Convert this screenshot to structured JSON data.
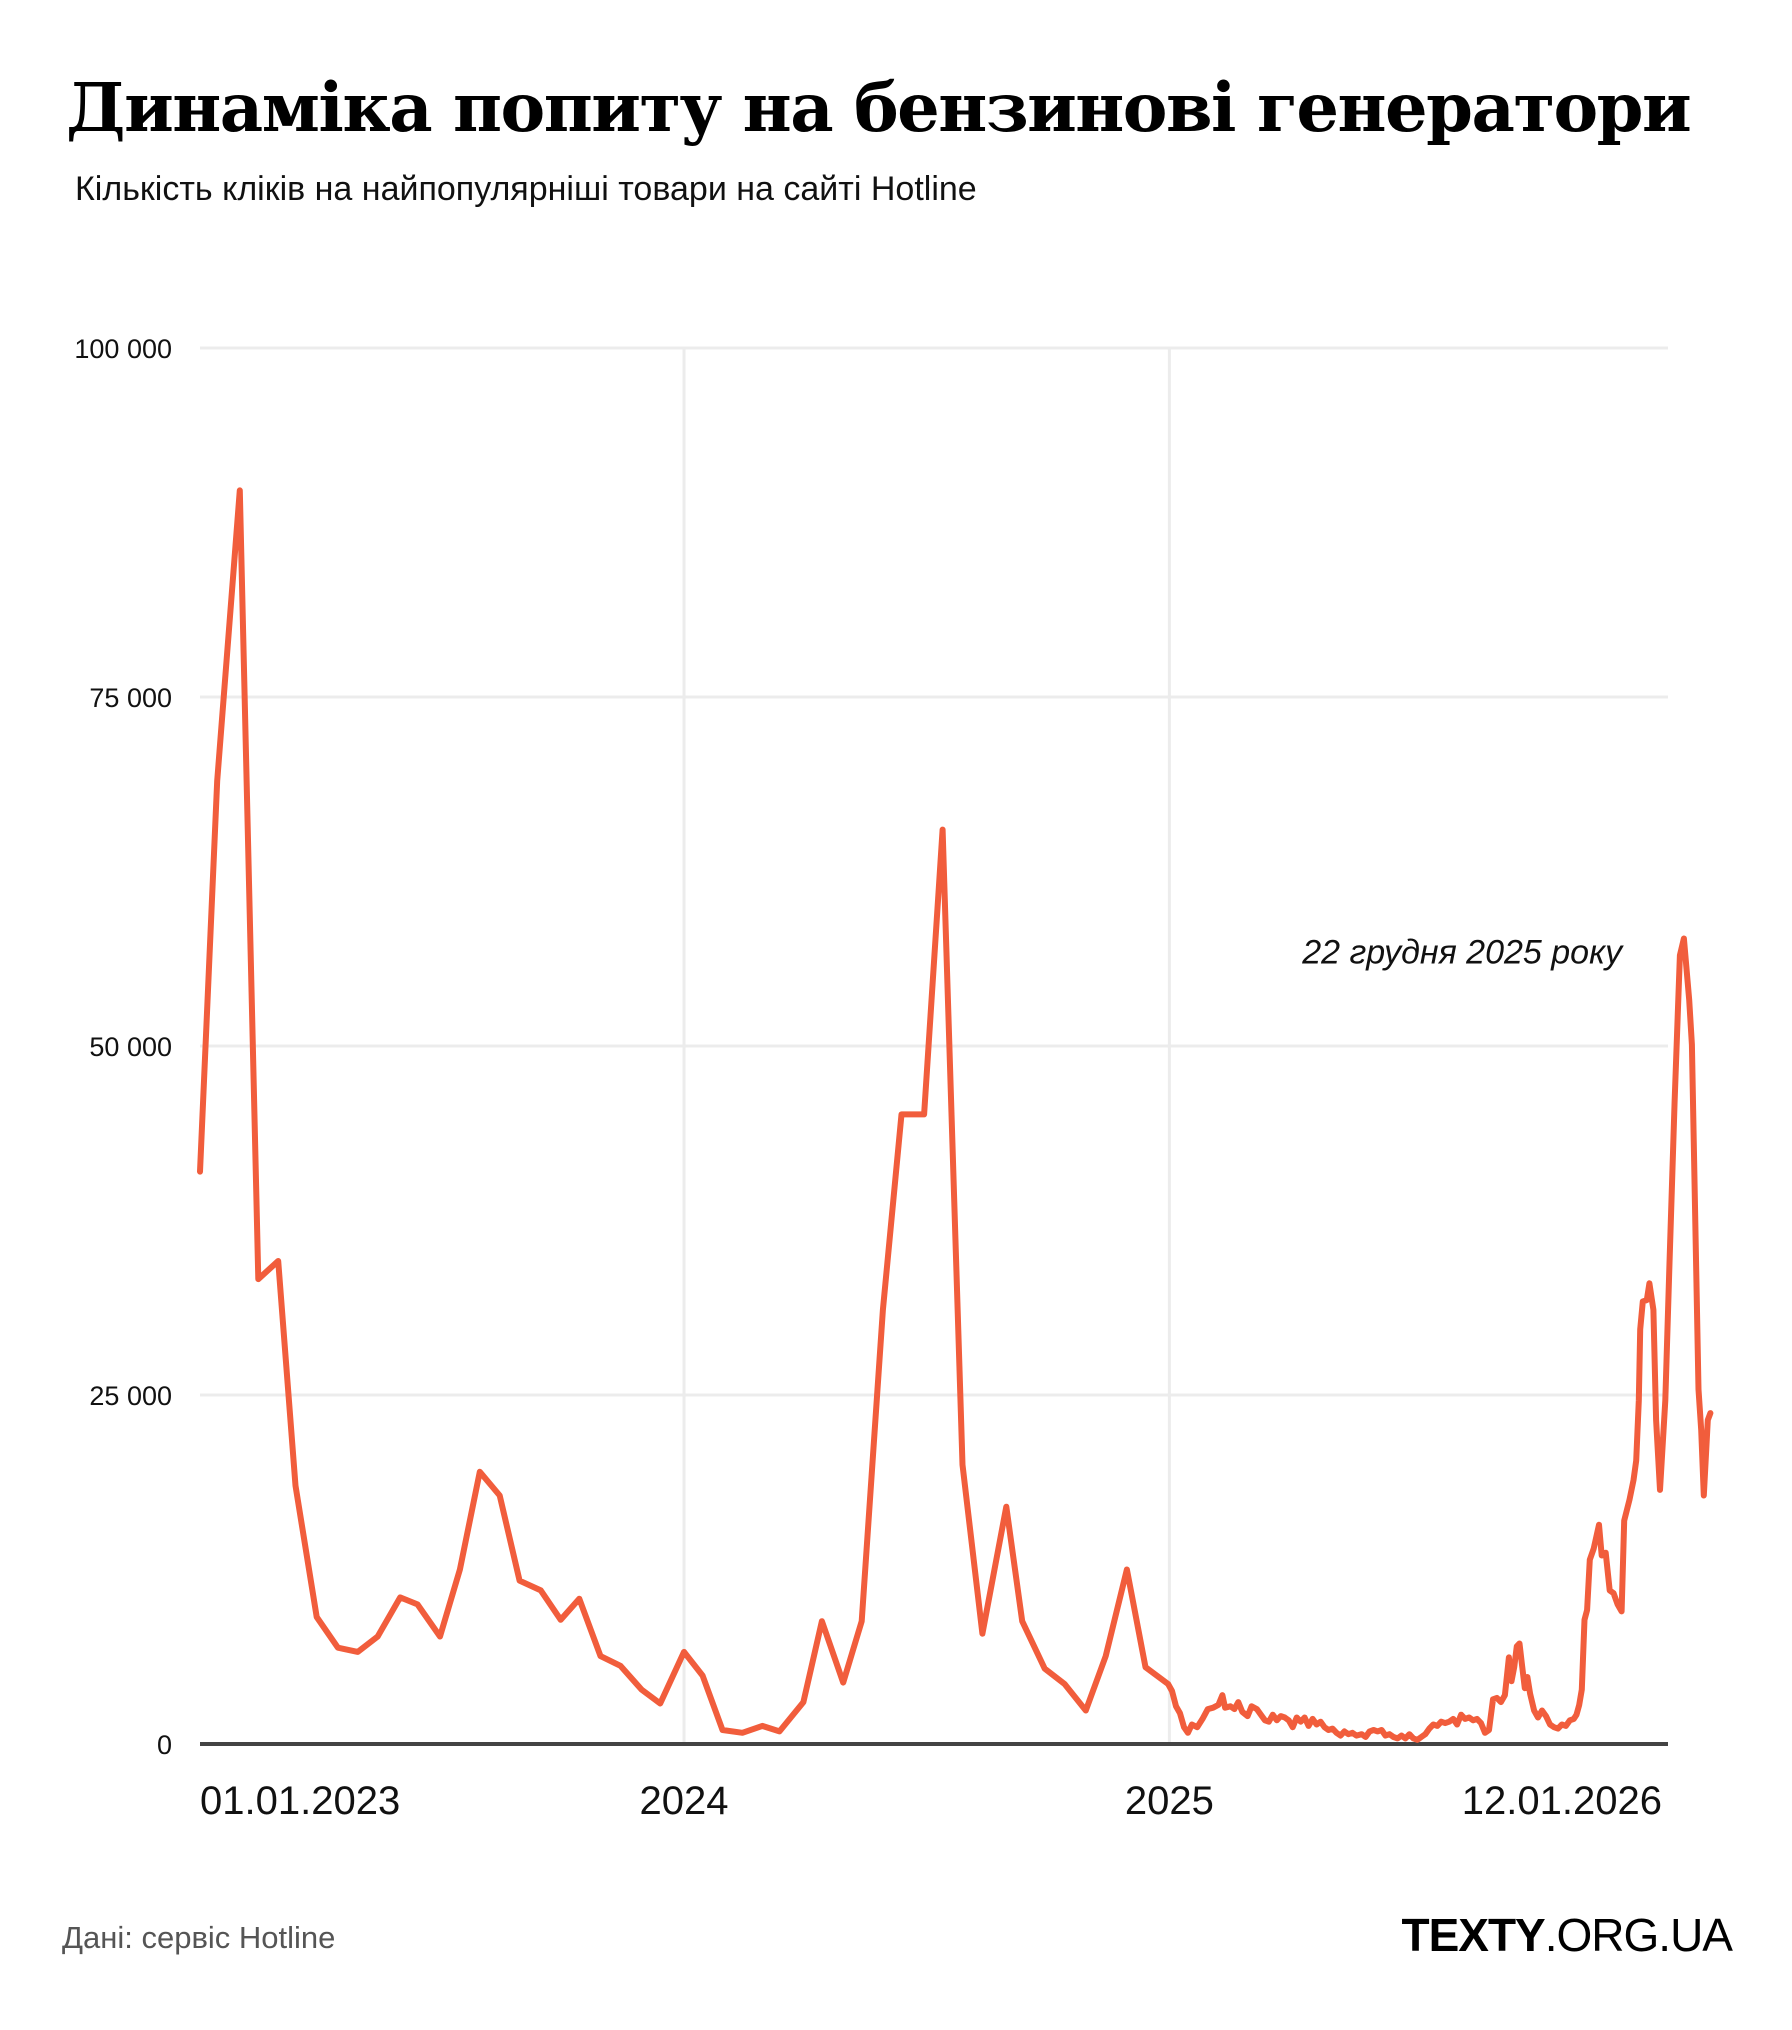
{
  "header": {
    "title": "Динаміка попиту на бензинові генератори",
    "subtitle": "Кількість кліків на найпопулярніші товари на сайті Hotline"
  },
  "footer": {
    "source": "Дані: сервіс Hotline",
    "brand_bold": "TEXTY",
    "brand_light": ".ORG.UA"
  },
  "colors": {
    "line": "#f15d3c",
    "grid": "#ececec",
    "axis": "#444444",
    "text": "#111111",
    "source_text": "#555555"
  },
  "chart_data": {
    "type": "line",
    "title": "Динаміка попиту на бензинові генератори",
    "subtitle": "Кількість кліків на найпопулярніші товари на сайті Hotline",
    "xlabel": "",
    "ylabel": "",
    "ylim": [
      0,
      100000
    ],
    "yticks": [
      0,
      25000,
      50000,
      75000,
      100000
    ],
    "ytick_labels": [
      "0",
      "25 000",
      "50 000",
      "75 000",
      "100 000"
    ],
    "x_range_days": [
      0,
      1107
    ],
    "x_origin_date": "2023-01-01",
    "xticks": [
      {
        "day": 0,
        "label": "01.01.2023",
        "gridline": false
      },
      {
        "day": 365,
        "label": "2024",
        "gridline": true
      },
      {
        "day": 731,
        "label": "2025",
        "gridline": true
      },
      {
        "day": 1107,
        "label": "12.01.2026",
        "gridline": false
      }
    ],
    "grid": true,
    "legend": null,
    "annotations": [
      {
        "text": "22 грудня 2025 року",
        "day": 1086,
        "value": 57700
      }
    ],
    "series": [
      {
        "name": "Кількість кліків",
        "points": [
          [
            0,
            41000
          ],
          [
            13,
            69000
          ],
          [
            30,
            89800
          ],
          [
            44,
            33300
          ],
          [
            59,
            34600
          ],
          [
            72,
            18500
          ],
          [
            88,
            9100
          ],
          [
            104,
            6900
          ],
          [
            119,
            6600
          ],
          [
            134,
            7700
          ],
          [
            151,
            10500
          ],
          [
            164,
            10000
          ],
          [
            181,
            7700
          ],
          [
            196,
            12500
          ],
          [
            211,
            19500
          ],
          [
            226,
            17800
          ],
          [
            241,
            11700
          ],
          [
            257,
            11000
          ],
          [
            272,
            8900
          ],
          [
            286,
            10400
          ],
          [
            302,
            6300
          ],
          [
            317,
            5600
          ],
          [
            333,
            3900
          ],
          [
            347,
            2900
          ],
          [
            365,
            6600
          ],
          [
            379,
            4900
          ],
          [
            394,
            1000
          ],
          [
            409,
            800
          ],
          [
            424,
            1300
          ],
          [
            437,
            900
          ],
          [
            455,
            3000
          ],
          [
            469,
            8800
          ],
          [
            485,
            4400
          ],
          [
            499,
            8800
          ],
          [
            515,
            31100
          ],
          [
            529,
            45100
          ],
          [
            546,
            45100
          ],
          [
            560,
            65500
          ],
          [
            575,
            20000
          ],
          [
            590,
            7900
          ],
          [
            608,
            17000
          ],
          [
            620,
            8800
          ],
          [
            637,
            5400
          ],
          [
            652,
            4300
          ],
          [
            668,
            2400
          ],
          [
            683,
            6300
          ],
          [
            699,
            12500
          ],
          [
            713,
            5500
          ],
          [
            730,
            4300
          ],
          [
            733,
            3800
          ],
          [
            736,
            2700
          ],
          [
            739,
            2200
          ],
          [
            742,
            1200
          ],
          [
            745,
            800
          ],
          [
            748,
            1400
          ],
          [
            752,
            1200
          ],
          [
            756,
            1800
          ],
          [
            760,
            2500
          ],
          [
            764,
            2600
          ],
          [
            768,
            2800
          ],
          [
            771,
            3500
          ],
          [
            773,
            2600
          ],
          [
            777,
            2700
          ],
          [
            780,
            2500
          ],
          [
            783,
            3000
          ],
          [
            786,
            2300
          ],
          [
            790,
            2000
          ],
          [
            793,
            2700
          ],
          [
            797,
            2500
          ],
          [
            800,
            2100
          ],
          [
            803,
            1700
          ],
          [
            806,
            1600
          ],
          [
            809,
            2100
          ],
          [
            812,
            1700
          ],
          [
            815,
            2000
          ],
          [
            818,
            1900
          ],
          [
            821,
            1700
          ],
          [
            824,
            1200
          ],
          [
            827,
            1900
          ],
          [
            830,
            1600
          ],
          [
            833,
            1900
          ],
          [
            836,
            1300
          ],
          [
            839,
            1800
          ],
          [
            842,
            1400
          ],
          [
            845,
            1600
          ],
          [
            848,
            1200
          ],
          [
            851,
            1000
          ],
          [
            854,
            1100
          ],
          [
            857,
            800
          ],
          [
            860,
            600
          ],
          [
            863,
            900
          ],
          [
            866,
            700
          ],
          [
            869,
            800
          ],
          [
            872,
            600
          ],
          [
            876,
            700
          ],
          [
            879,
            500
          ],
          [
            882,
            900
          ],
          [
            885,
            1000
          ],
          [
            888,
            900
          ],
          [
            891,
            1000
          ],
          [
            894,
            600
          ],
          [
            897,
            700
          ],
          [
            900,
            500
          ],
          [
            903,
            400
          ],
          [
            906,
            600
          ],
          [
            909,
            400
          ],
          [
            912,
            700
          ],
          [
            915,
            400
          ],
          [
            918,
            300
          ],
          [
            921,
            500
          ],
          [
            924,
            700
          ],
          [
            927,
            1100
          ],
          [
            930,
            1400
          ],
          [
            933,
            1300
          ],
          [
            936,
            1600
          ],
          [
            939,
            1500
          ],
          [
            942,
            1600
          ],
          [
            945,
            1800
          ],
          [
            948,
            1400
          ],
          [
            951,
            2100
          ],
          [
            954,
            1800
          ],
          [
            957,
            1900
          ],
          [
            960,
            1700
          ],
          [
            963,
            1800
          ],
          [
            966,
            1500
          ],
          [
            969,
            800
          ],
          [
            972,
            1000
          ],
          [
            975,
            3200
          ],
          [
            978,
            3300
          ],
          [
            981,
            3000
          ],
          [
            984,
            3500
          ],
          [
            987,
            6200
          ],
          [
            989,
            4500
          ],
          [
            991,
            5500
          ],
          [
            993,
            7000
          ],
          [
            995,
            7200
          ],
          [
            997,
            5600
          ],
          [
            999,
            4000
          ],
          [
            1001,
            4800
          ],
          [
            1003,
            3600
          ],
          [
            1006,
            2400
          ],
          [
            1009,
            1900
          ],
          [
            1012,
            2400
          ],
          [
            1015,
            2000
          ],
          [
            1018,
            1400
          ],
          [
            1021,
            1200
          ],
          [
            1024,
            1100
          ],
          [
            1027,
            1400
          ],
          [
            1030,
            1300
          ],
          [
            1033,
            1700
          ],
          [
            1036,
            1800
          ],
          [
            1038,
            2100
          ],
          [
            1040,
            2800
          ],
          [
            1042,
            3900
          ],
          [
            1044,
            8900
          ],
          [
            1046,
            9600
          ],
          [
            1048,
            13200
          ],
          [
            1051,
            14000
          ],
          [
            1055,
            15700
          ],
          [
            1057,
            13500
          ],
          [
            1060,
            13700
          ],
          [
            1063,
            11000
          ],
          [
            1066,
            10800
          ],
          [
            1069,
            10000
          ],
          [
            1072,
            9500
          ],
          [
            1074,
            16000
          ],
          [
            1078,
            17500
          ],
          [
            1081,
            18900
          ],
          [
            1083,
            20300
          ],
          [
            1085,
            24600
          ],
          [
            1086,
            29700
          ],
          [
            1088,
            31700
          ],
          [
            1091,
            31800
          ],
          [
            1093,
            33000
          ],
          [
            1096,
            31100
          ],
          [
            1098,
            23200
          ],
          [
            1101,
            18200
          ],
          [
            1105,
            24600
          ],
          [
            1108,
            34000
          ],
          [
            1112,
            46000
          ],
          [
            1116,
            56500
          ],
          [
            1119,
            57700
          ],
          [
            1123,
            53300
          ],
          [
            1125,
            50100
          ],
          [
            1130,
            25400
          ],
          [
            1132,
            22500
          ],
          [
            1134,
            17800
          ],
          [
            1137,
            23200
          ],
          [
            1139,
            23700
          ]
        ]
      }
    ]
  }
}
